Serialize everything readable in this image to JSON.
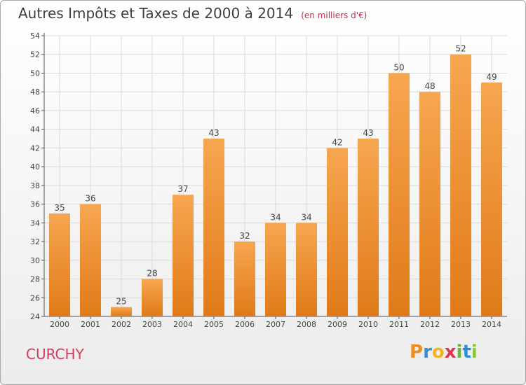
{
  "chart_data": {
    "type": "bar",
    "title": "Autres Impôts et Taxes de 2000 à 2014",
    "subtitle": "(en milliers d'€)",
    "categories": [
      "2000",
      "2001",
      "2002",
      "2003",
      "2004",
      "2005",
      "2006",
      "2007",
      "2008",
      "2009",
      "2010",
      "2011",
      "2012",
      "2013",
      "2014"
    ],
    "values": [
      35,
      36,
      25,
      28,
      37,
      43,
      32,
      34,
      34,
      42,
      43,
      50,
      48,
      52,
      49
    ],
    "ylim": [
      24,
      54
    ],
    "yticks": [
      24,
      26,
      28,
      30,
      32,
      34,
      36,
      38,
      40,
      42,
      44,
      46,
      48,
      50,
      52,
      54
    ],
    "grid": true,
    "bar_color_light": "#f7a650",
    "bar_color_dark": "#e07a18"
  },
  "location_label": "CURCHY",
  "brand": {
    "text": "Proxiti",
    "letters": [
      {
        "ch": "P",
        "color": "#f28b20"
      },
      {
        "ch": "r",
        "color": "#3a8fd0"
      },
      {
        "ch": "o",
        "color": "#f2b51d"
      },
      {
        "ch": "x",
        "color": "#e2344a"
      },
      {
        "ch": "i",
        "color": "#6cb33e"
      },
      {
        "ch": "t",
        "color": "#2f8fd6"
      },
      {
        "ch": "i",
        "color": "#8bc53f"
      }
    ]
  }
}
